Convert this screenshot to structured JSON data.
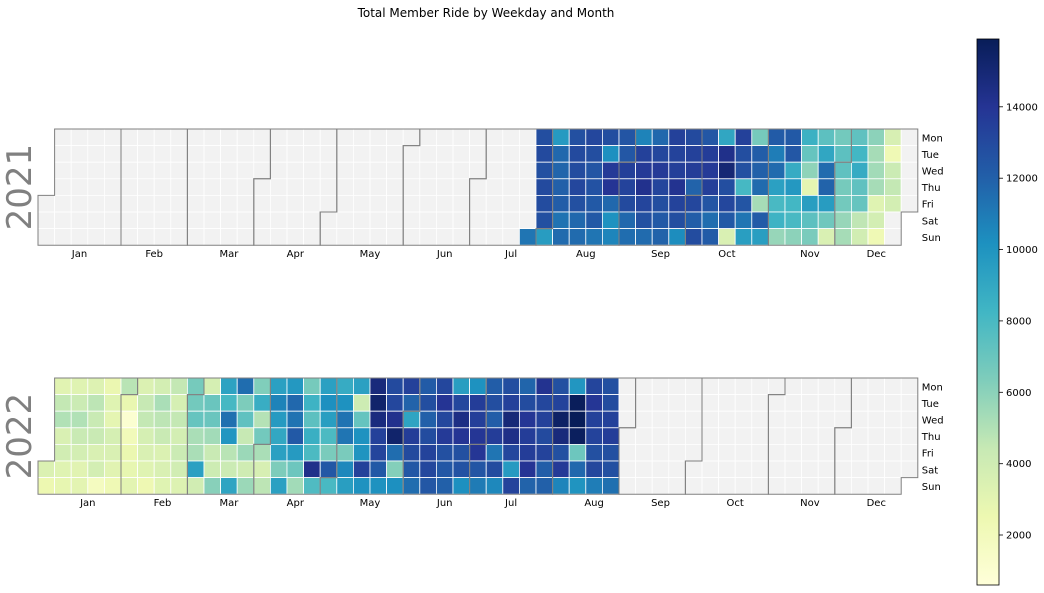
{
  "chart_data": {
    "type": "heatmap",
    "subtype": "calendar-heatmap",
    "title": "Total Member Ride by Weekday and Month",
    "years": [
      "2021",
      "2022"
    ],
    "weekday_labels": [
      "Mon",
      "Tue",
      "Wed",
      "Thu",
      "Fri",
      "Sat",
      "Sun"
    ],
    "month_labels": [
      "Jan",
      "Feb",
      "Mar",
      "Apr",
      "May",
      "Jun",
      "Jul",
      "Aug",
      "Sep",
      "Oct",
      "Nov",
      "Dec"
    ],
    "colorbar": {
      "min": 600,
      "max": 15900,
      "ticks": [
        "2000",
        "4000",
        "6000",
        "8000",
        "10000",
        "12000",
        "14000"
      ],
      "colormap": "YlGnBu"
    },
    "no_data_color": "#f2f2f2",
    "data_ranges": [
      {
        "year": "2021",
        "start": "2021-07-25",
        "end": "2021-12-31"
      },
      {
        "year": "2022",
        "start": "2022-01-01",
        "end": "2022-07-31"
      }
    ],
    "weekly_values": {
      "2021": {
        "first_week_start": "2021-07-19",
        "weeks": [
          [
            null,
            null,
            null,
            null,
            null,
            null,
            11200
          ],
          [
            12800,
            13000,
            12700,
            13000,
            12900,
            12700,
            9600
          ],
          [
            9700,
            11700,
            11800,
            12000,
            12100,
            11300,
            11600
          ],
          [
            12700,
            13000,
            12900,
            13100,
            12700,
            11700,
            11600
          ],
          [
            13100,
            12800,
            12500,
            12600,
            12300,
            12300,
            11200
          ],
          [
            12800,
            10200,
            13700,
            14000,
            11700,
            10100,
            10600
          ],
          [
            12500,
            12400,
            13500,
            13300,
            13000,
            11700,
            11500
          ],
          [
            10700,
            13400,
            13700,
            14200,
            13200,
            12700,
            11600
          ],
          [
            11700,
            13100,
            13700,
            13200,
            12800,
            12300,
            11900
          ],
          [
            13400,
            13300,
            13500,
            14100,
            13300,
            12800,
            10300
          ],
          [
            13000,
            13400,
            13600,
            11900,
            13100,
            12100,
            12900
          ],
          [
            12400,
            13600,
            13700,
            13500,
            12500,
            11500,
            12200
          ],
          [
            9100,
            14300,
            15000,
            12800,
            13100,
            12300,
            3500
          ],
          [
            13400,
            12800,
            12700,
            8100,
            12500,
            11200,
            9500
          ],
          [
            6600,
            12100,
            12000,
            11600,
            5300,
            12200,
            9500
          ],
          [
            12200,
            10900,
            11600,
            9400,
            8000,
            8400,
            5700
          ],
          [
            12300,
            12400,
            8800,
            9800,
            8200,
            8000,
            6000
          ],
          [
            8500,
            7100,
            5900,
            2900,
            9500,
            7400,
            6500
          ],
          [
            7400,
            9100,
            11600,
            11900,
            9600,
            6800,
            3500
          ],
          [
            6700,
            7400,
            7300,
            6600,
            6700,
            5700,
            5300
          ],
          [
            7300,
            8200,
            8800,
            7300,
            7100,
            4600,
            3900
          ],
          [
            6000,
            5300,
            5400,
            5300,
            3200,
            3800,
            2300
          ],
          [
            3600,
            2300,
            4200,
            4500,
            3800,
            null,
            null
          ]
        ]
      },
      "2022": {
        "first_week_start": "2021-12-27",
        "weeks": [
          [
            null,
            null,
            null,
            null,
            null,
            3400,
            2500
          ],
          [
            3100,
            4500,
            5000,
            3500,
            3900,
            3200,
            2800
          ],
          [
            3200,
            4200,
            5000,
            4300,
            3800,
            3100,
            3000
          ],
          [
            3300,
            4700,
            4300,
            4300,
            3500,
            3800,
            1800
          ],
          [
            2600,
            3200,
            2900,
            3700,
            3500,
            3100,
            2300
          ],
          [
            4800,
            2700,
            1000,
            2100,
            2600,
            2800,
            3000
          ],
          [
            3400,
            4400,
            4500,
            3700,
            3500,
            3200,
            2400
          ],
          [
            3800,
            5200,
            4700,
            4300,
            3400,
            3500,
            3200
          ],
          [
            4500,
            3700,
            4500,
            3800,
            4200,
            3900,
            3300
          ],
          [
            6600,
            6700,
            7100,
            5200,
            5200,
            9400,
            3900
          ],
          [
            3700,
            7000,
            7000,
            5400,
            4300,
            4100,
            6100
          ],
          [
            9300,
            8100,
            11400,
            9900,
            4800,
            4200,
            9200
          ],
          [
            11500,
            6400,
            7300,
            4400,
            5600,
            4000,
            5600
          ],
          [
            6300,
            8700,
            4900,
            6700,
            5200,
            3600,
            4700
          ],
          [
            9400,
            10700,
            9700,
            9000,
            9400,
            6400,
            9400
          ],
          [
            9800,
            11700,
            11300,
            12300,
            9700,
            6900,
            5400
          ],
          [
            6600,
            8400,
            7400,
            8600,
            7900,
            14300,
            7800
          ],
          [
            9400,
            10200,
            9500,
            7900,
            6500,
            12400,
            8000
          ],
          [
            8800,
            10100,
            11300,
            11200,
            6500,
            10500,
            9500
          ],
          [
            9400,
            4100,
            7100,
            10100,
            10000,
            13400,
            10100
          ],
          [
            14800,
            15300,
            14700,
            13400,
            13200,
            12300,
            10100
          ],
          [
            13000,
            13100,
            14200,
            15300,
            11500,
            6200,
            10200
          ],
          [
            13400,
            11900,
            9200,
            13600,
            13000,
            12400,
            11500
          ],
          [
            12200,
            12800,
            12000,
            12900,
            13300,
            13100,
            12400
          ],
          [
            13100,
            14000,
            13100,
            13700,
            12700,
            12400,
            12000
          ],
          [
            9500,
            13100,
            14500,
            14000,
            12700,
            12600,
            10200
          ],
          [
            10100,
            13600,
            13500,
            13900,
            13900,
            12500,
            11000
          ],
          [
            12100,
            12800,
            12100,
            13600,
            11200,
            12900,
            10500
          ],
          [
            12800,
            13400,
            14900,
            14400,
            13100,
            9700,
            13300
          ],
          [
            11800,
            12900,
            13900,
            13600,
            13600,
            14000,
            11900
          ],
          [
            14100,
            13100,
            13400,
            13000,
            13300,
            12100,
            12000
          ],
          [
            12700,
            13300,
            15500,
            14800,
            12700,
            13700,
            10600
          ],
          [
            9900,
            15800,
            15900,
            15700,
            6900,
            11700,
            10000
          ],
          [
            13200,
            13900,
            13400,
            13300,
            12700,
            13100,
            10900
          ],
          [
            12700,
            12900,
            13400,
            13600,
            12700,
            12700,
            11400
          ]
        ]
      }
    }
  }
}
